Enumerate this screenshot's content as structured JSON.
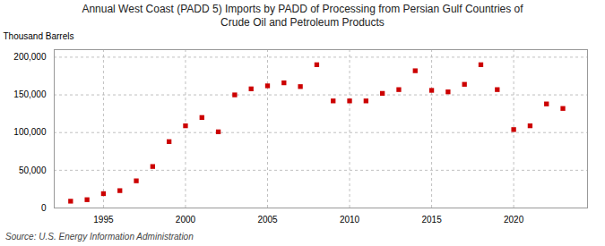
{
  "chart_data": {
    "type": "scatter",
    "title": "Annual West Coast (PADD 5) Imports by PADD of Processing from Persian Gulf Countries of\nCrude Oil and Petroleum Products",
    "ylabel": "Thousand Barrels",
    "source": "Source: U.S. Energy Information Administration",
    "x": [
      1993,
      1994,
      1995,
      1996,
      1997,
      1998,
      1999,
      2000,
      2001,
      2002,
      2003,
      2004,
      2005,
      2006,
      2007,
      2008,
      2009,
      2010,
      2011,
      2012,
      2013,
      2014,
      2015,
      2016,
      2017,
      2018,
      2019,
      2020,
      2021,
      2022,
      2023
    ],
    "values": [
      9000,
      11000,
      19000,
      23000,
      36000,
      55000,
      88000,
      109000,
      120000,
      101000,
      150000,
      158000,
      162000,
      166000,
      161000,
      190000,
      142000,
      142000,
      142000,
      152000,
      157000,
      182000,
      156000,
      154000,
      164000,
      190000,
      157000,
      104000,
      109000,
      138000,
      132000
    ],
    "color": "#cc0000",
    "marker": "square",
    "xlim": [
      1992,
      2024.5
    ],
    "ylim": [
      0,
      210000
    ],
    "xticks": [
      1995,
      2000,
      2005,
      2010,
      2015,
      2020
    ],
    "yticks": [
      0,
      {
        "value": 50000,
        "label": "50,000"
      },
      {
        "value": 100000,
        "label": "100,000"
      },
      {
        "value": 150000,
        "label": "150,000"
      },
      {
        "value": 200000,
        "label": "200,000"
      }
    ],
    "grid": true
  }
}
